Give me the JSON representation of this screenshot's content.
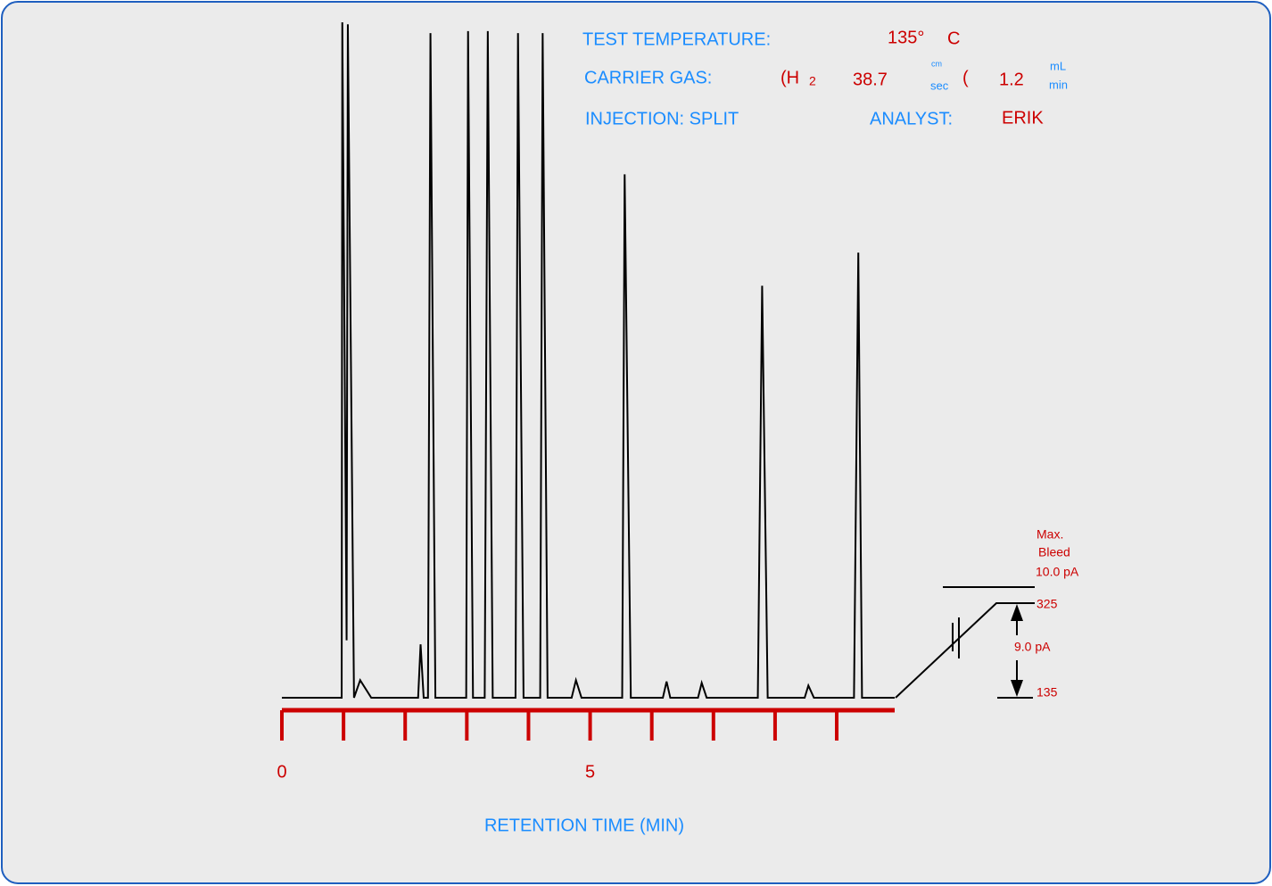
{
  "info": {
    "temp_label": "TEST TEMPERATURE:",
    "temp_value": "135°",
    "temp_unit": "C",
    "gas_label": "CARRIER GAS:",
    "gas_open": "(H",
    "gas_sub": "2",
    "velocity": "38.7",
    "velocity_unit_top": "cm",
    "velocity_unit_bottom": "sec",
    "flow_open": "(",
    "flow": "1.2",
    "flow_unit_top": "mL",
    "flow_unit_bottom": "min",
    "injection": "INJECTION: SPLIT",
    "analyst_label": "ANALYST:",
    "analyst": "ERIK"
  },
  "bleed": {
    "line1": "Max.",
    "line2": "Bleed",
    "line3": "10.0 pA",
    "top_temp": "325",
    "span": "9.0 pA",
    "bottom_temp": "135"
  },
  "chart_data": {
    "type": "line",
    "xlabel": "RETENTION TIME (MIN)",
    "x": [
      0,
      0.97,
      0.98,
      1.05,
      1.07,
      1.17,
      1.27,
      1.45,
      2.21,
      2.25,
      2.3,
      2.37,
      2.41,
      2.49,
      2.99,
      3.02,
      3.1,
      3.29,
      3.34,
      3.42,
      3.79,
      3.83,
      3.92,
      4.19,
      4.23,
      4.31,
      4.7,
      4.77,
      4.86,
      5.52,
      5.56,
      5.66,
      6.18,
      6.24,
      6.3,
      6.75,
      6.81,
      6.89,
      7.72,
      7.79,
      7.88,
      8.48,
      8.54,
      8.63,
      9.28,
      9.35,
      9.41,
      9.94
    ],
    "series": [
      {
        "color": "#000000",
        "values": [
          0,
          0,
          100,
          8.5,
          99.7,
          0,
          2.6,
          0,
          0,
          7.9,
          0,
          0,
          98.4,
          0,
          0,
          98.7,
          0,
          0,
          98.7,
          0,
          0,
          98.4,
          0,
          0,
          98.4,
          0,
          0,
          2.6,
          0,
          0,
          77.5,
          0,
          0,
          2.4,
          0,
          0,
          2.2,
          0,
          0,
          61.0,
          0,
          0,
          1.8,
          0,
          0,
          65.9,
          0,
          0
        ]
      }
    ],
    "xlim": [
      0,
      9.94
    ],
    "ylim": [
      0,
      100
    ],
    "xticks": [
      0,
      5
    ],
    "xminor_ticks": [
      1,
      2,
      3,
      4,
      6,
      7,
      8,
      9
    ],
    "axis_color": "#cc0000"
  }
}
